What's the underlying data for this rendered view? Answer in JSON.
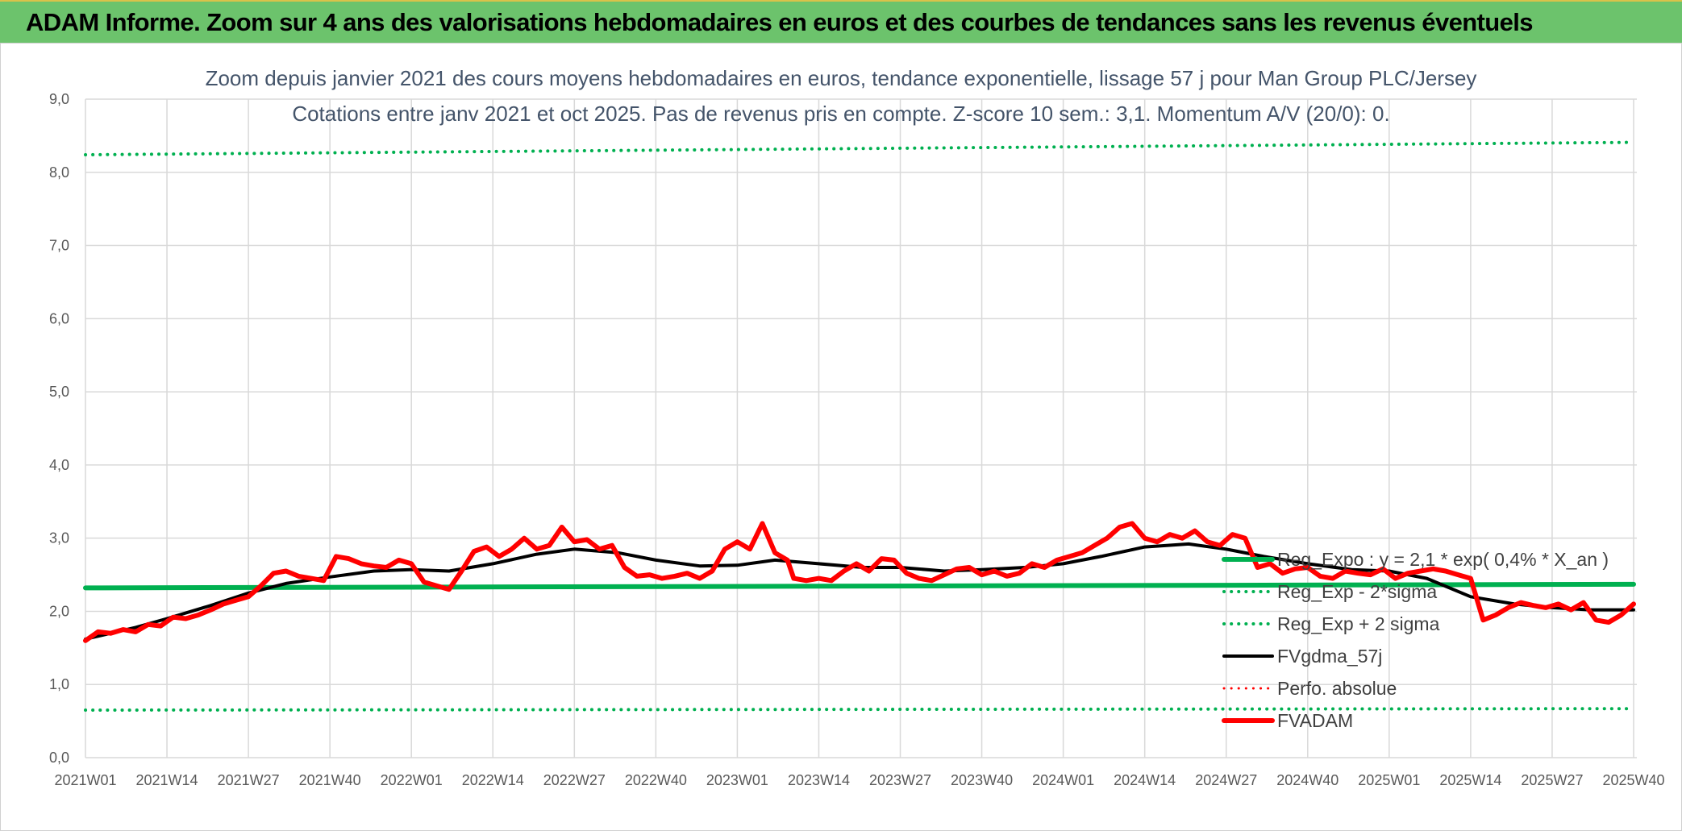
{
  "banner": {
    "title": "ADAM Informe. Zoom sur 4 ans des valorisations hebdomadaires en euros et des courbes de tendances sans les revenus éventuels",
    "background": "#6cc36c"
  },
  "chart_data": {
    "type": "line",
    "title": "Zoom depuis janvier 2021 des cours moyens hebdomadaires en euros, tendance exponentielle, lissage 57 j pour Man Group PLC/Jersey",
    "subtitle": "Cotations entre janv 2021 et oct 2025. Pas de revenus pris en compte. Z-score 10 sem.: 3,1. Momentum A/V (20/0): 0.",
    "xlabel": "",
    "ylabel": "",
    "ylim": [
      0,
      9
    ],
    "yticks": [
      "0,0",
      "1,0",
      "2,0",
      "3,0",
      "4,0",
      "5,0",
      "6,0",
      "7,0",
      "8,0",
      "9,0"
    ],
    "x_range_weeks": [
      0,
      247
    ],
    "xtick_labels": [
      "2021W01",
      "2021W14",
      "2021W27",
      "2021W40",
      "2022W01",
      "2022W14",
      "2022W27",
      "2022W40",
      "2023W01",
      "2023W14",
      "2023W27",
      "2023W40",
      "2024W01",
      "2024W14",
      "2024W27",
      "2024W40",
      "2025W01",
      "2025W14",
      "2025W27",
      "2025W40"
    ],
    "xtick_weeks": [
      0,
      13,
      26,
      39,
      52,
      65,
      78,
      91,
      104,
      117,
      130,
      143,
      156,
      169,
      182,
      195,
      208,
      221,
      234,
      247
    ],
    "grid": true,
    "legend_position": "right",
    "series": [
      {
        "name": "Reg_Expo : y = 2,1 * exp( 0,4% *  X_an )",
        "color": "#00b050",
        "style": "solid",
        "width": 6,
        "x": [
          0,
          247
        ],
        "values": [
          2.32,
          2.37
        ]
      },
      {
        "name": "Reg_Exp - 2*sigma",
        "color": "#00b050",
        "style": "dotted",
        "width": 4,
        "x": [
          0,
          247
        ],
        "values": [
          0.65,
          0.67
        ]
      },
      {
        "name": "Reg_Exp + 2 sigma",
        "color": "#00b050",
        "style": "dotted",
        "width": 4,
        "x": [
          0,
          247
        ],
        "values": [
          8.24,
          8.41
        ]
      },
      {
        "name": "FVgdma_57j",
        "color": "#000000",
        "style": "solid",
        "width": 4,
        "x": [
          0,
          4,
          8,
          13,
          20,
          26,
          32,
          39,
          46,
          52,
          58,
          65,
          72,
          78,
          85,
          91,
          98,
          104,
          110,
          117,
          124,
          130,
          137,
          143,
          150,
          156,
          162,
          169,
          176,
          182,
          188,
          195,
          202,
          208,
          214,
          221,
          228,
          234,
          240,
          247
        ],
        "values": [
          1.62,
          1.7,
          1.78,
          1.9,
          2.08,
          2.25,
          2.38,
          2.47,
          2.55,
          2.57,
          2.55,
          2.65,
          2.78,
          2.85,
          2.8,
          2.7,
          2.62,
          2.63,
          2.7,
          2.65,
          2.6,
          2.6,
          2.55,
          2.57,
          2.6,
          2.65,
          2.75,
          2.88,
          2.92,
          2.85,
          2.75,
          2.65,
          2.57,
          2.55,
          2.45,
          2.2,
          2.1,
          2.05,
          2.02,
          2.02
        ]
      },
      {
        "name": "Perfo. absolue",
        "color": "#ff0000",
        "style": "dotted",
        "width": 3,
        "x": [],
        "values": []
      },
      {
        "name": "FVADAM",
        "color": "#ff0000",
        "style": "solid",
        "width": 6,
        "x": [
          0,
          2,
          4,
          6,
          8,
          10,
          12,
          14,
          16,
          18,
          20,
          22,
          24,
          26,
          28,
          30,
          32,
          34,
          36,
          38,
          40,
          42,
          44,
          46,
          48,
          50,
          52,
          54,
          56,
          58,
          60,
          62,
          64,
          66,
          68,
          70,
          72,
          74,
          76,
          78,
          80,
          82,
          84,
          86,
          88,
          90,
          92,
          94,
          96,
          98,
          100,
          102,
          104,
          106,
          108,
          110,
          112,
          113,
          115,
          117,
          119,
          121,
          123,
          125,
          127,
          129,
          131,
          133,
          135,
          137,
          139,
          141,
          143,
          145,
          147,
          149,
          151,
          153,
          155,
          157,
          159,
          161,
          163,
          165,
          167,
          169,
          171,
          173,
          175,
          177,
          179,
          181,
          183,
          185,
          187,
          189,
          191,
          193,
          195,
          197,
          199,
          201,
          203,
          205,
          207,
          209,
          211,
          213,
          215,
          217,
          219,
          221,
          223,
          225,
          227,
          229,
          231,
          233,
          235,
          237,
          239,
          241,
          243,
          245,
          247
        ],
        "values": [
          1.6,
          1.72,
          1.7,
          1.75,
          1.72,
          1.82,
          1.8,
          1.92,
          1.9,
          1.95,
          2.02,
          2.1,
          2.15,
          2.2,
          2.35,
          2.52,
          2.55,
          2.48,
          2.45,
          2.42,
          2.75,
          2.72,
          2.65,
          2.62,
          2.6,
          2.7,
          2.65,
          2.4,
          2.35,
          2.3,
          2.55,
          2.82,
          2.88,
          2.75,
          2.85,
          3.0,
          2.85,
          2.9,
          3.15,
          2.95,
          2.98,
          2.85,
          2.9,
          2.6,
          2.48,
          2.5,
          2.45,
          2.48,
          2.52,
          2.45,
          2.55,
          2.85,
          2.95,
          2.85,
          3.2,
          2.8,
          2.7,
          2.45,
          2.42,
          2.45,
          2.42,
          2.55,
          2.65,
          2.55,
          2.72,
          2.7,
          2.52,
          2.45,
          2.42,
          2.5,
          2.58,
          2.6,
          2.5,
          2.55,
          2.48,
          2.52,
          2.65,
          2.6,
          2.7,
          2.75,
          2.8,
          2.9,
          3.0,
          3.15,
          3.2,
          3.0,
          2.95,
          3.05,
          3.0,
          3.1,
          2.95,
          2.9,
          3.05,
          3.0,
          2.6,
          2.65,
          2.52,
          2.58,
          2.6,
          2.48,
          2.45,
          2.55,
          2.52,
          2.5,
          2.58,
          2.45,
          2.52,
          2.55,
          2.58,
          2.55,
          2.5,
          2.45,
          1.88,
          1.95,
          2.05,
          2.12,
          2.08,
          2.05,
          2.1,
          2.02,
          2.12,
          1.88,
          1.85,
          1.95,
          2.1
        ]
      }
    ]
  }
}
